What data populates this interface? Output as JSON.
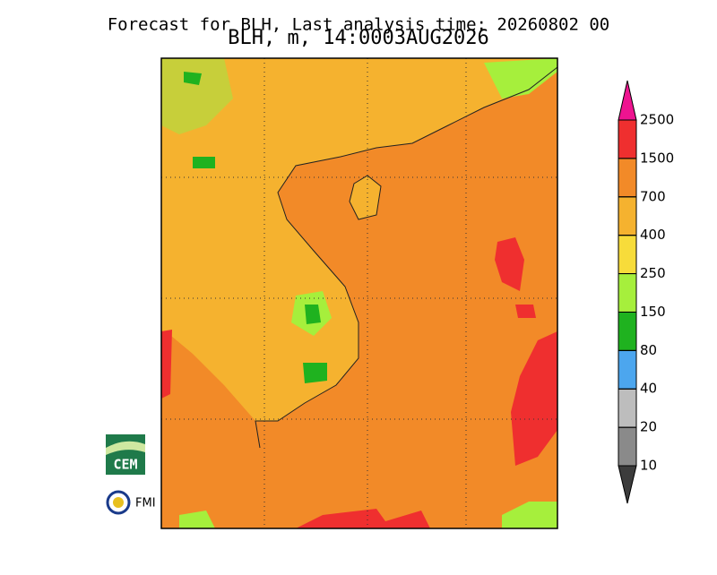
{
  "header": {
    "line1": "Forecast for BLH, Last analysis time: 20260802 00",
    "line2": "BLH, m, 14:0003AUG2026"
  },
  "colorbar": {
    "levels": [
      10,
      20,
      40,
      80,
      150,
      250,
      400,
      700,
      1500,
      2500
    ],
    "colors": [
      "#3c3c3c",
      "#8a8a8a",
      "#bdbdbd",
      "#4ca6ee",
      "#1fb21f",
      "#a6ef3c",
      "#f7dc3a",
      "#f5b22f",
      "#f28a28",
      "#ef2f2f",
      "#ee1490"
    ]
  },
  "logos": {
    "cem": "CEM",
    "fmi": "FMI"
  }
}
